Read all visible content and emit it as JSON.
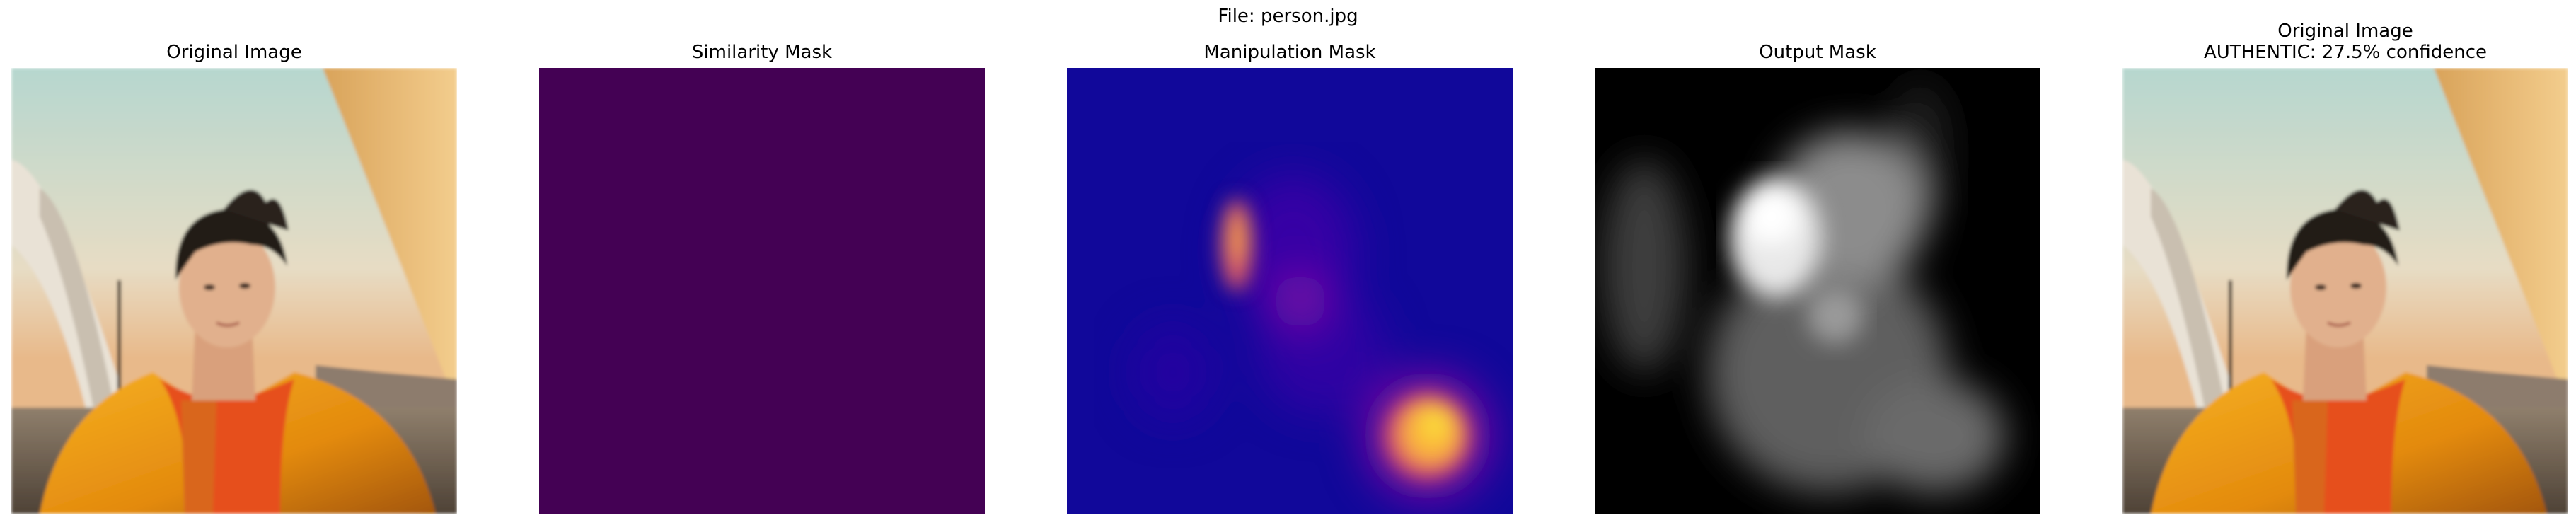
{
  "figure": {
    "suptitle": "File: person.jpg"
  },
  "panels": {
    "original": {
      "title": "Original Image",
      "image": "portrait-photo"
    },
    "similarity": {
      "title": "Similarity Mask",
      "color": "#440154"
    },
    "manipulation": {
      "title": "Manipulation Mask",
      "colormap": "plasma"
    },
    "output": {
      "title": "Output Mask",
      "colormap": "gray"
    },
    "result": {
      "title": "Original Image\nAUTHENTIC: 27.5% confidence",
      "image": "portrait-photo"
    }
  }
}
